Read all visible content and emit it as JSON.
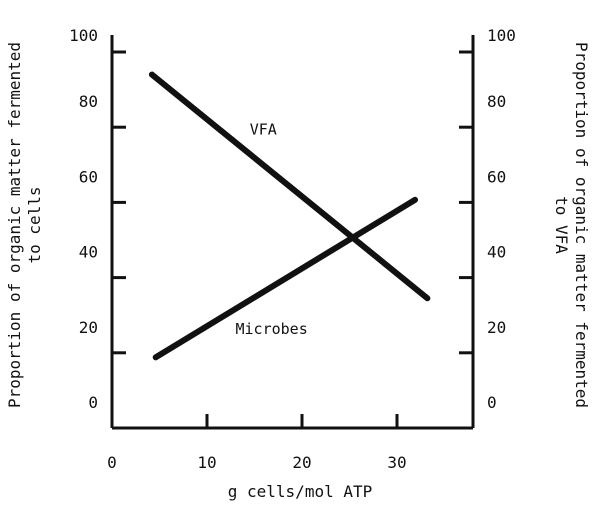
{
  "chart_data": {
    "type": "line",
    "title": "",
    "xlabel": "g cells/mol ATP",
    "ylabel_left": [
      "Proportion of organic matter fermented",
      "to cells"
    ],
    "ylabel_right": [
      "Proportion of organic matter fermented",
      "to VFA"
    ],
    "xlim": [
      0,
      38
    ],
    "ylim": [
      0,
      100
    ],
    "x_ticks": [
      0,
      10,
      20,
      30
    ],
    "y_ticks": [
      0,
      20,
      40,
      60,
      80,
      100
    ],
    "grid": false,
    "series": [
      {
        "name": "VFA",
        "x": [
          4.2,
          33.2
        ],
        "y": [
          94,
          34.5
        ],
        "color": "#111111"
      },
      {
        "name": "Microbes",
        "x": [
          4.6,
          31.9
        ],
        "y": [
          18.8,
          60.7
        ],
        "color": "#111111"
      }
    ],
    "annotations": [
      {
        "text": "VFA",
        "x": 14.5,
        "y": 78
      },
      {
        "text": "Microbes",
        "x": 13,
        "y": 25
      }
    ]
  }
}
